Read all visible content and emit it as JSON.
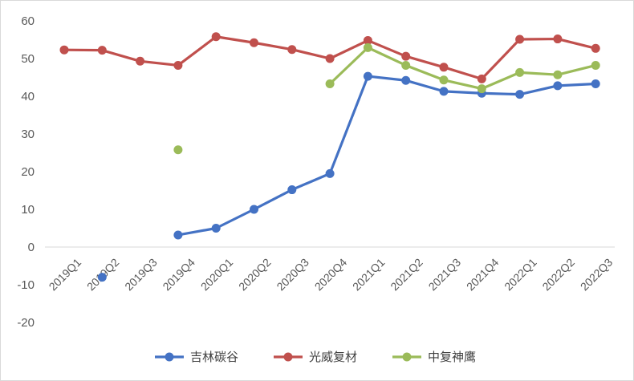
{
  "chart_data": {
    "type": "line",
    "title": "",
    "xlabel": "",
    "ylabel": "",
    "categories": [
      "2019Q1",
      "2019Q2",
      "2019Q3",
      "2019Q4",
      "2020Q1",
      "2020Q2",
      "2020Q3",
      "2020Q4",
      "2021Q1",
      "2021Q2",
      "2021Q3",
      "2021Q4",
      "2022Q1",
      "2022Q2",
      "2022Q3"
    ],
    "ylim": [
      -20,
      60
    ],
    "yticks": [
      -20,
      -10,
      0,
      10,
      20,
      30,
      40,
      50,
      60
    ],
    "grid": false,
    "legend": "bottom",
    "series": [
      {
        "name": "吉林碳谷",
        "color": "#4472c4",
        "values": [
          null,
          -8,
          null,
          3.2,
          5,
          10,
          15.2,
          19.5,
          45.3,
          44.2,
          41.3,
          40.8,
          40.5,
          42.8,
          43.3
        ]
      },
      {
        "name": "光威复材",
        "color": "#c0504d",
        "values": [
          52.3,
          52.2,
          49.3,
          48.2,
          55.8,
          54.2,
          52.4,
          50.0,
          54.8,
          50.6,
          47.7,
          44.6,
          55.1,
          55.2,
          52.7
        ]
      },
      {
        "name": "中复神鹰",
        "color": "#9bbb59",
        "values": [
          null,
          null,
          null,
          25.8,
          null,
          null,
          null,
          43.3,
          52.9,
          48.2,
          44.3,
          42.0,
          46.3,
          45.7,
          48.2
        ]
      }
    ]
  }
}
